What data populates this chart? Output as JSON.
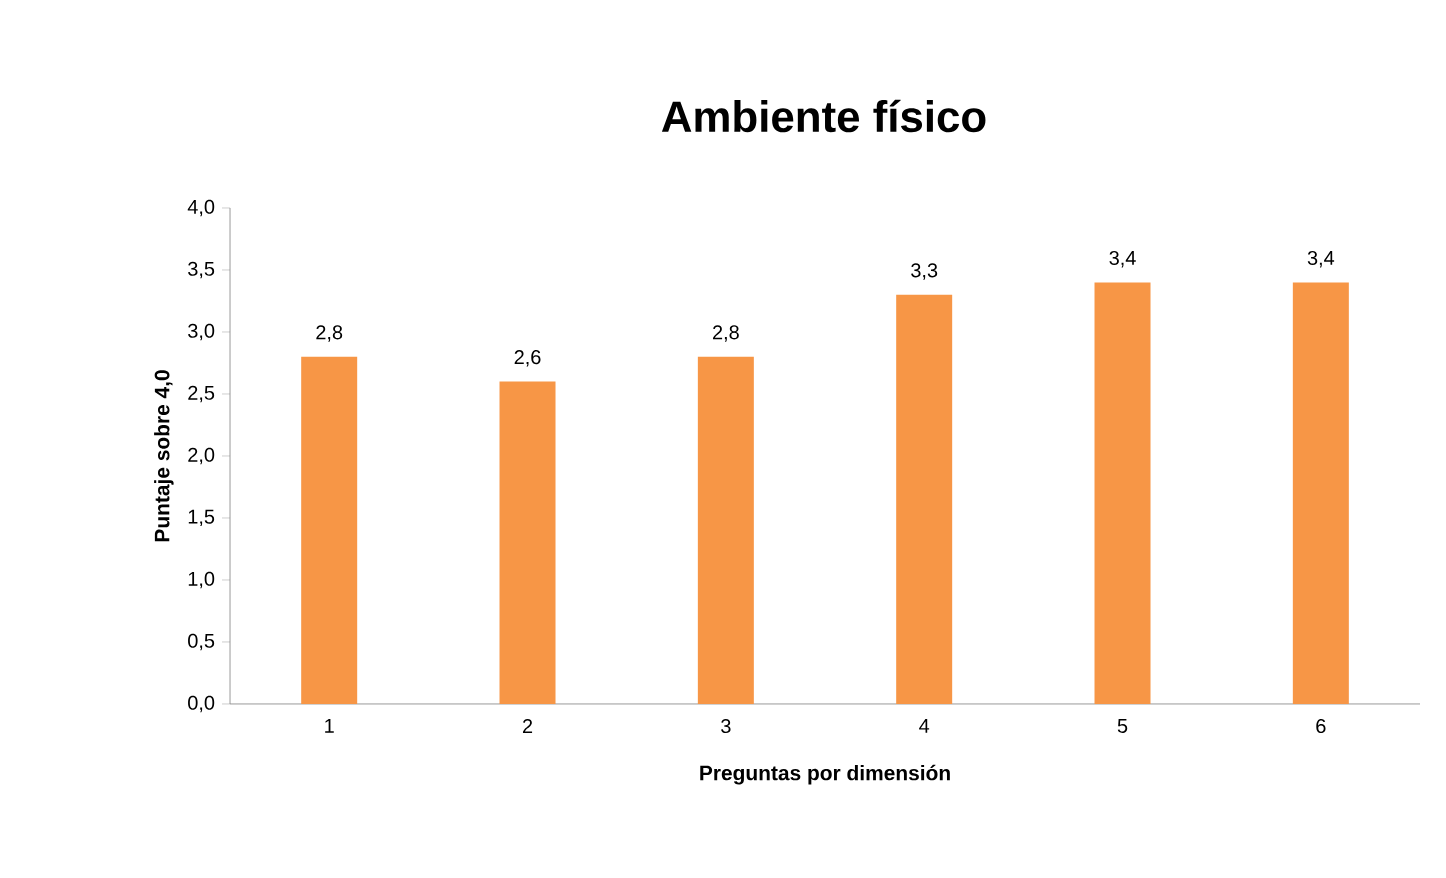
{
  "chart_data": {
    "type": "bar",
    "title": "Ambiente físico",
    "xlabel": "Preguntas por dimensión",
    "ylabel": "Puntaje sobre 4,0",
    "categories": [
      "1",
      "2",
      "3",
      "4",
      "5",
      "6"
    ],
    "values": [
      2.8,
      2.6,
      2.8,
      3.3,
      3.4,
      3.4
    ],
    "value_labels": [
      "2,8",
      "2,6",
      "2,8",
      "3,3",
      "3,4",
      "3,4"
    ],
    "color": "#f79646",
    "grid": false,
    "ylim": [
      0,
      4
    ],
    "yticks": [
      {
        "value": 0,
        "label": "0,0"
      },
      {
        "value": 0.5,
        "label": "0,5"
      },
      {
        "value": 1,
        "label": "1,0"
      },
      {
        "value": 1.5,
        "label": "1,5"
      },
      {
        "value": 2,
        "label": "2,0"
      },
      {
        "value": 2.5,
        "label": "2,5"
      },
      {
        "value": 3,
        "label": "3,0"
      },
      {
        "value": 3.5,
        "label": "3,5"
      },
      {
        "value": 4,
        "label": "4,0"
      }
    ]
  }
}
